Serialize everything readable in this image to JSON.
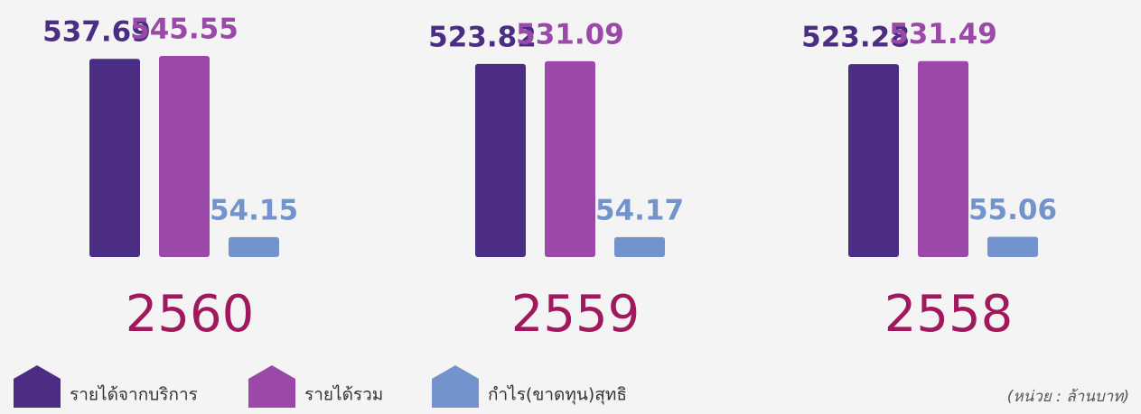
{
  "chart_data": {
    "type": "bar",
    "categories": [
      "2560",
      "2559",
      "2558"
    ],
    "series": [
      {
        "name": "รายได้จากบริการ",
        "color": "#4b2d83",
        "values": [
          537.69,
          523.82,
          523.28
        ]
      },
      {
        "name": "รายได้รวม",
        "color": "#9b49a8",
        "values": [
          545.55,
          531.09,
          531.49
        ]
      },
      {
        "name": "กำไร(ขาดทุน)สุทธิ",
        "color": "#7293cc",
        "values": [
          54.15,
          54.17,
          55.06
        ]
      }
    ],
    "annotation": "(หน่วย : ล้านบาท)"
  }
}
